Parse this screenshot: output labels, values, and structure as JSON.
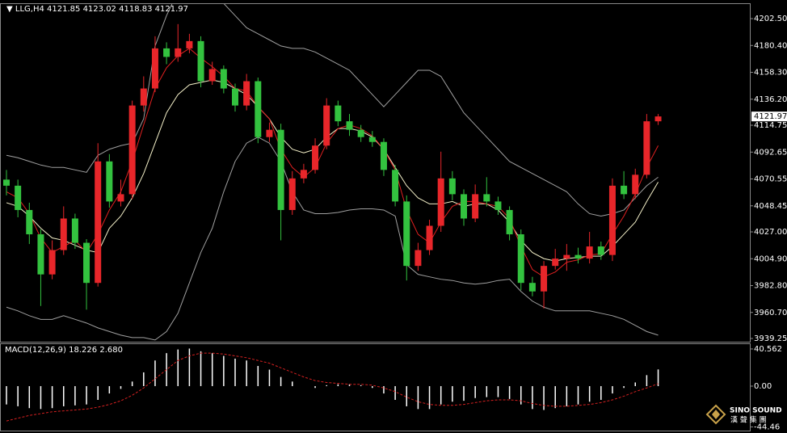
{
  "chart_data": [
    {
      "type": "candlestick",
      "title": "LLG,H4",
      "header_values": [
        4121.85,
        4123.02,
        4118.83,
        4121.97
      ],
      "up_color": "#e8262a",
      "down_color": "#33c23f",
      "open": [
        4070,
        4065,
        4045,
        4025,
        3992,
        4012,
        4038,
        4018,
        3985,
        4085,
        4052,
        4058,
        4131,
        4145,
        4178,
        4171,
        4178,
        4184,
        4151,
        4161,
        4145,
        4131,
        4151,
        4105,
        4111,
        4045,
        4071,
        4078,
        4098,
        4131,
        4118,
        4111,
        4105,
        4101,
        4078,
        4052,
        3999,
        4012,
        4032,
        4071,
        4058,
        4038,
        4058,
        4052,
        4045,
        4025,
        3985,
        3978,
        3999,
        4005,
        4008,
        4005,
        4015,
        4008,
        4065,
        4058,
        4074,
        4118
      ],
      "high": [
        4078,
        4070,
        4051,
        4029,
        4020,
        4048,
        4042,
        4021,
        4100,
        4091,
        4070,
        4135,
        4155,
        4188,
        4183,
        4198,
        4190,
        4188,
        4167,
        4164,
        4149,
        4157,
        4154,
        4117,
        4116,
        4077,
        4083,
        4104,
        4137,
        4135,
        4124,
        4115,
        4110,
        4104,
        4082,
        4057,
        4018,
        4037,
        4093,
        4077,
        4062,
        4066,
        4072,
        4056,
        4048,
        4029,
        3990,
        4003,
        4013,
        4017,
        4014,
        4027,
        4019,
        4071,
        4077,
        4079,
        4124,
        4124
      ],
      "low": [
        4057,
        4039,
        4017,
        3966,
        3988,
        4008,
        4013,
        3963,
        3982,
        4047,
        4048,
        4054,
        4126,
        4142,
        4165,
        4167,
        4174,
        4146,
        4148,
        4141,
        4126,
        4127,
        4100,
        4101,
        4020,
        4041,
        4067,
        4075,
        4095,
        4114,
        4106,
        4101,
        4097,
        4073,
        4048,
        3987,
        3995,
        4008,
        4027,
        4053,
        4032,
        4035,
        4048,
        4041,
        4020,
        3979,
        3974,
        3964,
        3996,
        3995,
        4001,
        4001,
        4004,
        4003,
        4054,
        4054,
        4071,
        4115
      ],
      "close": [
        4065,
        4045,
        4025,
        3992,
        4012,
        4038,
        4018,
        3985,
        4085,
        4052,
        4058,
        4131,
        4145,
        4178,
        4171,
        4178,
        4184,
        4151,
        4161,
        4145,
        4131,
        4151,
        4105,
        4111,
        4045,
        4071,
        4078,
        4098,
        4131,
        4118,
        4111,
        4105,
        4101,
        4078,
        4052,
        3999,
        4012,
        4032,
        4071,
        4058,
        4038,
        4058,
        4052,
        4045,
        4025,
        3985,
        3978,
        3999,
        4005,
        4008,
        4005,
        4015,
        4008,
        4065,
        4058,
        4074,
        4118,
        4122
      ],
      "overlays": [
        {
          "color": "#a0a0a0",
          "values": [
            4090,
            4088,
            4085,
            4082,
            4080,
            4080,
            4078,
            4076,
            4090,
            4095,
            4098,
            4100,
            4120,
            4180,
            4205,
            4225,
            4230,
            4230,
            4225,
            4215,
            4205,
            4195,
            4190,
            4185,
            4180,
            4178,
            4178,
            4175,
            4170,
            4165,
            4160,
            4150,
            4140,
            4130,
            4140,
            4150,
            4160,
            4160,
            4155,
            4140,
            4125,
            4115,
            4105,
            4095,
            4085,
            4080,
            4075,
            4070,
            4065,
            4060,
            4050,
            4042,
            4040,
            4042,
            4045,
            4055,
            4065,
            4072
          ]
        },
        {
          "color": "#a0a0a0",
          "values": [
            3965,
            3962,
            3958,
            3955,
            3955,
            3958,
            3955,
            3952,
            3948,
            3945,
            3942,
            3940,
            3940,
            3938,
            3945,
            3960,
            3985,
            4010,
            4030,
            4060,
            4085,
            4100,
            4105,
            4100,
            4085,
            4060,
            4045,
            4042,
            4042,
            4043,
            4045,
            4046,
            4046,
            4045,
            4040,
            4000,
            3992,
            3990,
            3988,
            3987,
            3985,
            3984,
            3985,
            3987,
            3988,
            3978,
            3970,
            3965,
            3962,
            3962,
            3962,
            3962,
            3960,
            3958,
            3955,
            3950,
            3945,
            3942
          ]
        },
        {
          "color": "#f4f0c8",
          "values": [
            4051,
            4048,
            4040,
            4030,
            4022,
            4020,
            4016,
            4012,
            4010,
            4030,
            4040,
            4055,
            4075,
            4100,
            4125,
            4140,
            4148,
            4150,
            4152,
            4150,
            4145,
            4140,
            4130,
            4120,
            4105,
            4095,
            4092,
            4095,
            4105,
            4112,
            4112,
            4110,
            4105,
            4095,
            4080,
            4065,
            4055,
            4050,
            4050,
            4052,
            4048,
            4050,
            4050,
            4045,
            4035,
            4020,
            4010,
            4005,
            4003,
            4005,
            4006,
            4007,
            4007,
            4015,
            4025,
            4035,
            4052,
            4068
          ]
        },
        {
          "color": "#e02020",
          "values": [
            4060,
            4055,
            4042,
            4022,
            4010,
            4015,
            4020,
            4010,
            4025,
            4045,
            4060,
            4085,
            4115,
            4145,
            4162,
            4172,
            4178,
            4170,
            4163,
            4155,
            4145,
            4143,
            4130,
            4120,
            4095,
            4080,
            4072,
            4080,
            4100,
            4112,
            4115,
            4112,
            4106,
            4095,
            4078,
            4045,
            4025,
            4018,
            4035,
            4048,
            4052,
            4052,
            4050,
            4048,
            4038,
            4015,
            3996,
            3990,
            3994,
            4002,
            4004,
            4008,
            4009,
            4025,
            4040,
            4058,
            4080,
            4098
          ]
        }
      ],
      "ylim": [
        3936.6,
        4214.5
      ],
      "yticks": [
        {
          "value": 4202.5,
          "label": "4202.50"
        },
        {
          "value": 4180.4,
          "label": "4180.40"
        },
        {
          "value": 4158.3,
          "label": "4158.30"
        },
        {
          "value": 4136.2,
          "label": "4136.20"
        },
        4114.75,
        4092.65,
        4070.55,
        4048.45,
        {
          "value": 4027,
          "label": "4027.00"
        },
        {
          "value": 4004.9,
          "label": "4004.90"
        },
        {
          "value": 3982.8,
          "label": "3982.80"
        },
        {
          "value": 3960.7,
          "label": "3960.70"
        },
        3939.25
      ]
    },
    {
      "type": "macd",
      "title": "MACD(12,26,9)",
      "header_values": [
        18.226,
        {
          "value": 2.68,
          "label": "2.680"
        }
      ],
      "histogram": {
        "color": "#ffffff",
        "values": [
          -20,
          -22,
          -24,
          -25,
          -24,
          -22,
          -21,
          -20,
          -15,
          -8,
          -3,
          5,
          15,
          28,
          36,
          40,
          41,
          38,
          36,
          33,
          30,
          28,
          22,
          18,
          10,
          5,
          0,
          -2,
          1,
          2,
          2,
          1,
          -2,
          -8,
          -15,
          -22,
          -25,
          -25,
          -20,
          -17,
          -16,
          -13,
          -12,
          -12,
          -14,
          -20,
          -25,
          -26,
          -24,
          -22,
          -20,
          -17,
          -15,
          -8,
          -2,
          4,
          12,
          18.226
        ]
      },
      "signal": {
        "color": "#d42020",
        "values": [
          -38,
          -35,
          -32,
          -30,
          -28,
          -27,
          -26,
          -25,
          -23,
          -20,
          -16,
          -10,
          -2,
          8,
          18,
          28,
          33,
          36,
          36,
          35,
          33,
          31,
          28,
          25,
          20,
          15,
          10,
          6,
          4,
          3,
          2,
          2,
          1,
          -2,
          -6,
          -12,
          -17,
          -20,
          -21,
          -21,
          -20,
          -18,
          -16,
          -15,
          -15,
          -16,
          -19,
          -21,
          -22,
          -22,
          -21,
          -20,
          -18,
          -15,
          -11,
          -6,
          -2,
          2.68
        ]
      },
      "ylim": [
        -48.5,
        46.7
      ],
      "yticks": [
        40.562,
        {
          "value": 0,
          "label": "0.00"
        },
        -44.46
      ]
    }
  ],
  "logo": {
    "name": "SINO SOUND",
    "subtitle": "漢 聲 集 團"
  }
}
